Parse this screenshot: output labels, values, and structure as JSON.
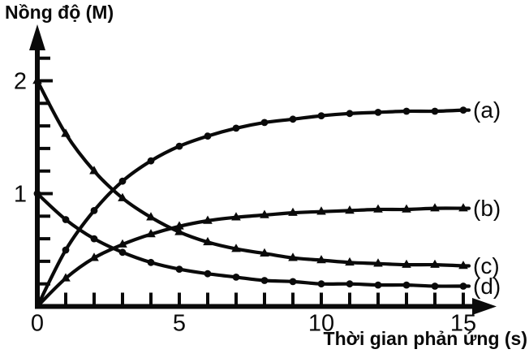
{
  "chart_data": {
    "type": "line",
    "title": "",
    "ylabel": "Nồng độ (M)",
    "xlabel": "Thời gian phản ứng (s)",
    "x": [
      0,
      1,
      2,
      3,
      4,
      5,
      6,
      7,
      8,
      9,
      10,
      11,
      12,
      13,
      14,
      15
    ],
    "series": [
      {
        "name": "(a)",
        "marker": "circle",
        "trend": "increasing",
        "start_value": 0,
        "end_value": 1.74,
        "values": [
          0,
          0.5,
          0.85,
          1.11,
          1.29,
          1.42,
          1.51,
          1.58,
          1.63,
          1.66,
          1.69,
          1.71,
          1.72,
          1.73,
          1.73,
          1.74
        ]
      },
      {
        "name": "(b)",
        "marker": "triangle",
        "trend": "increasing",
        "start_value": 0,
        "end_value": 0.87,
        "values": [
          0,
          0.25,
          0.43,
          0.55,
          0.64,
          0.71,
          0.76,
          0.79,
          0.81,
          0.83,
          0.84,
          0.85,
          0.86,
          0.86,
          0.87,
          0.87
        ]
      },
      {
        "name": "(c)",
        "marker": "triangle",
        "trend": "decreasing",
        "start_value": 2.0,
        "end_value": 0.36,
        "values": [
          2.0,
          1.53,
          1.2,
          0.96,
          0.79,
          0.66,
          0.57,
          0.51,
          0.47,
          0.43,
          0.41,
          0.39,
          0.38,
          0.37,
          0.37,
          0.36
        ]
      },
      {
        "name": "(d)",
        "marker": "circle",
        "trend": "decreasing",
        "start_value": 1.0,
        "end_value": 0.18,
        "values": [
          1.0,
          0.77,
          0.6,
          0.48,
          0.39,
          0.33,
          0.29,
          0.26,
          0.23,
          0.22,
          0.2,
          0.2,
          0.19,
          0.19,
          0.18,
          0.18
        ]
      }
    ],
    "x_tick_values": [
      0,
      5,
      10,
      15
    ],
    "x_tick_labels": [
      "0",
      "5",
      "10",
      "15"
    ],
    "x_minor_ticks": [
      1,
      2,
      3,
      4,
      5,
      6,
      7,
      8,
      9,
      10,
      11,
      12,
      13,
      14,
      15
    ],
    "y_tick_values": [
      1,
      2
    ],
    "y_tick_labels": [
      "1",
      "2"
    ],
    "y_minor_ticks": [
      0.2,
      0.4,
      0.6,
      0.8,
      1.0,
      1.2,
      1.4,
      1.6,
      1.8,
      2.0,
      2.2
    ],
    "xlim": [
      0,
      16.5
    ],
    "ylim": [
      0,
      2.5
    ],
    "grid": false,
    "legend_position": "right-end-labels",
    "line_color": "#0a0a0a",
    "background": "#ffffff"
  }
}
